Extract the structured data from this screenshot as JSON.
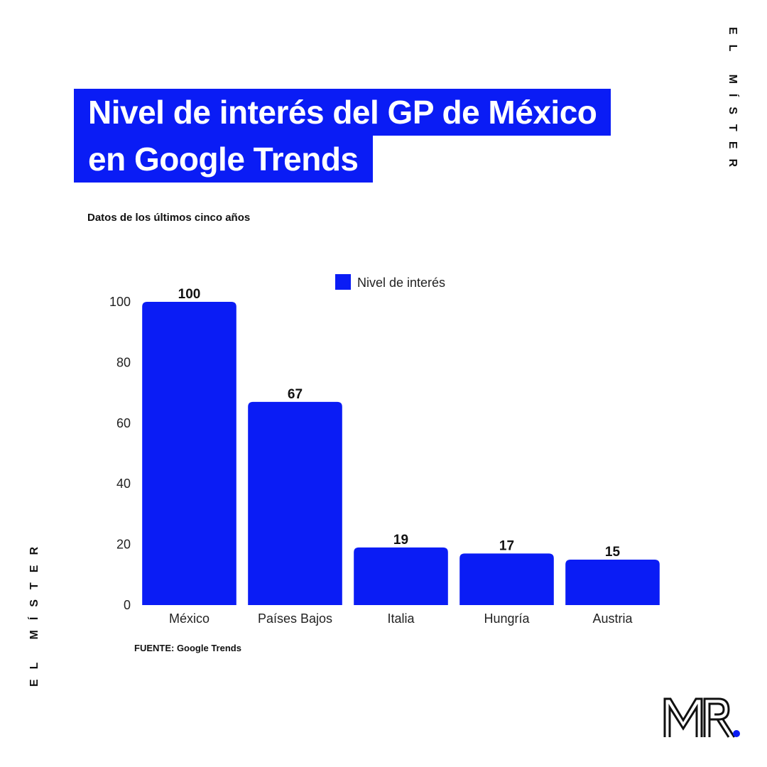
{
  "brand": {
    "vertical_label_right": "EL MÍSTER",
    "vertical_label_left": "EL MÍSTER",
    "logo_text": "MR",
    "accent_color": "#0a1cf5"
  },
  "header": {
    "title_line1": "Nivel de interés del GP de México",
    "title_line2": "en Google Trends",
    "subtitle": "Datos de los últimos cinco años"
  },
  "footer": {
    "source": "FUENTE: Google Trends"
  },
  "chart_data": {
    "type": "bar",
    "categories": [
      "México",
      "Países Bajos",
      "Italia",
      "Hungría",
      "Austria"
    ],
    "series": [
      {
        "name": "Nivel de interés",
        "values": [
          100,
          67,
          19,
          17,
          15
        ],
        "color": "#0a1cf5"
      }
    ],
    "ylim": [
      0,
      100
    ],
    "yticks": [
      0,
      20,
      40,
      60,
      80,
      100
    ],
    "data_labels": true,
    "grid": false,
    "legend_position": "top-center"
  }
}
